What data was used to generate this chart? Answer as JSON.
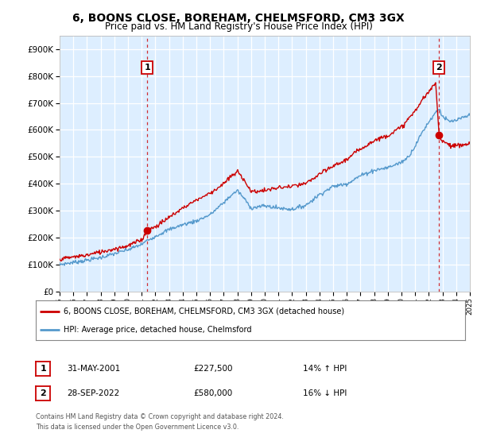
{
  "title": "6, BOONS CLOSE, BOREHAM, CHELMSFORD, CM3 3GX",
  "subtitle": "Price paid vs. HM Land Registry's House Price Index (HPI)",
  "ylabel_ticks": [
    "£0",
    "£100K",
    "£200K",
    "£300K",
    "£400K",
    "£500K",
    "£600K",
    "£700K",
    "£800K",
    "£900K"
  ],
  "ytick_values": [
    0,
    100000,
    200000,
    300000,
    400000,
    500000,
    600000,
    700000,
    800000,
    900000
  ],
  "ylim": [
    0,
    950000
  ],
  "xlim": [
    1995,
    2025
  ],
  "sale1": {
    "date_num": 2001.42,
    "price": 227500,
    "label": "1"
  },
  "sale2": {
    "date_num": 2022.75,
    "price": 580000,
    "label": "2"
  },
  "legend_line1": "6, BOONS CLOSE, BOREHAM, CHELMSFORD, CM3 3GX (detached house)",
  "legend_line2": "HPI: Average price, detached house, Chelmsford",
  "footer1": "Contains HM Land Registry data © Crown copyright and database right 2024.",
  "footer2": "This data is licensed under the Open Government Licence v3.0.",
  "red_color": "#cc0000",
  "blue_color": "#5599cc",
  "blue_fill": "#ddeeff",
  "background_color": "#ffffff",
  "grid_color": "#cccccc",
  "title_fontsize": 10,
  "subtitle_fontsize": 8.5
}
